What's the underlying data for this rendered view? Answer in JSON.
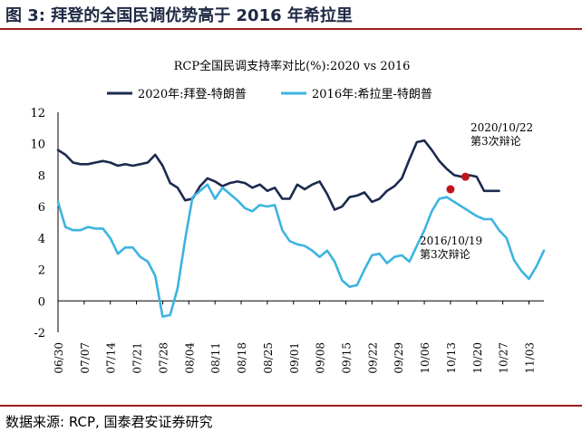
{
  "figure": {
    "title": "图 3:  拜登的全国民调优势高于 2016 年希拉里",
    "source": "数据来源:  RCP, 国泰君安证券研究"
  },
  "colors": {
    "rule": "#9b1c1c",
    "series_2020": "#1b2a4e",
    "series_2016": "#3cb4e0",
    "debate_marker": "#c0141c"
  },
  "chart_data": {
    "type": "line",
    "title": "RCP全国民调支持率对比(%):2020 vs 2016",
    "legend_position": "top",
    "ylim": [
      -2,
      12
    ],
    "yticks": [
      -2,
      0,
      2,
      4,
      6,
      8,
      10,
      12
    ],
    "xlim": [
      0,
      130
    ],
    "x_tick_labels": [
      "06/30",
      "07/07",
      "07/14",
      "07/21",
      "07/28",
      "08/04",
      "08/11",
      "08/18",
      "08/25",
      "09/01",
      "09/08",
      "09/15",
      "09/22",
      "09/29",
      "10/06",
      "10/13",
      "10/20",
      "10/27",
      "11/03"
    ],
    "x_unit": "days after 06/30",
    "series": [
      {
        "name": "2020年:拜登-特朗普",
        "color": "#1b2a4e",
        "x": [
          0,
          2,
          4,
          6,
          8,
          10,
          12,
          14,
          16,
          18,
          20,
          22,
          24,
          26,
          28,
          30,
          32,
          34,
          36,
          38,
          40,
          42,
          44,
          46,
          48,
          50,
          52,
          54,
          56,
          58,
          60,
          62,
          64,
          66,
          68,
          70,
          72,
          74,
          76,
          78,
          80,
          82,
          84,
          86,
          88,
          90,
          92,
          94,
          96,
          98,
          100,
          102,
          104,
          106,
          108,
          110,
          112,
          114,
          116,
          118
        ],
        "values": [
          9.6,
          9.3,
          8.8,
          8.7,
          8.7,
          8.8,
          8.9,
          8.8,
          8.6,
          8.7,
          8.6,
          8.7,
          8.8,
          9.3,
          8.6,
          7.5,
          7.2,
          6.4,
          6.5,
          7.3,
          7.8,
          7.6,
          7.3,
          7.5,
          7.6,
          7.5,
          7.2,
          7.4,
          7.0,
          7.2,
          6.5,
          6.5,
          7.4,
          7.1,
          7.4,
          7.6,
          6.8,
          5.8,
          6.0,
          6.6,
          6.7,
          6.9,
          6.3,
          6.5,
          7.0,
          7.3,
          7.8,
          9.0,
          10.1,
          10.2,
          9.6,
          8.9,
          8.4,
          8.0,
          7.9,
          8.0,
          7.9,
          7.0,
          7.0,
          7.0
        ]
      },
      {
        "name": "2016年:希拉里-特朗普",
        "color": "#3cb4e0",
        "x": [
          0,
          2,
          4,
          6,
          8,
          10,
          12,
          14,
          16,
          18,
          20,
          22,
          24,
          26,
          28,
          30,
          32,
          34,
          36,
          38,
          40,
          42,
          44,
          46,
          48,
          50,
          52,
          54,
          56,
          58,
          60,
          62,
          64,
          66,
          68,
          70,
          72,
          74,
          76,
          78,
          80,
          82,
          84,
          86,
          88,
          90,
          92,
          94,
          96,
          98,
          100,
          102,
          104,
          106,
          108,
          110,
          112,
          114,
          116,
          118,
          120,
          122,
          124,
          126,
          128,
          130
        ],
        "values": [
          6.3,
          4.7,
          4.5,
          4.5,
          4.7,
          4.6,
          4.6,
          4.0,
          3.0,
          3.4,
          3.4,
          2.8,
          2.5,
          1.6,
          -1.0,
          -0.9,
          0.8,
          3.9,
          6.6,
          7.0,
          7.4,
          6.5,
          7.2,
          6.8,
          6.4,
          5.9,
          5.7,
          6.1,
          6.0,
          6.1,
          4.5,
          3.8,
          3.6,
          3.5,
          3.2,
          2.8,
          3.2,
          2.5,
          1.3,
          0.9,
          1.0,
          2.0,
          2.9,
          3.0,
          2.4,
          2.8,
          2.9,
          2.5,
          3.5,
          4.5,
          5.7,
          6.5,
          6.6,
          6.3,
          6.0,
          5.7,
          5.4,
          5.2,
          5.2,
          4.5,
          4.0,
          2.6,
          1.9,
          1.4,
          2.2,
          3.2
        ]
      }
    ],
    "annotations": [
      {
        "series": "2020年:拜登-特朗普",
        "x": 109,
        "y": 7.9,
        "label_lines": [
          "2020/10/22",
          "第3次辩论"
        ]
      },
      {
        "series": "2016年:希拉里-特朗普",
        "x": 105,
        "y": 7.1,
        "label_lines": [
          "2016/10/19",
          "第3次辩论"
        ]
      }
    ]
  }
}
